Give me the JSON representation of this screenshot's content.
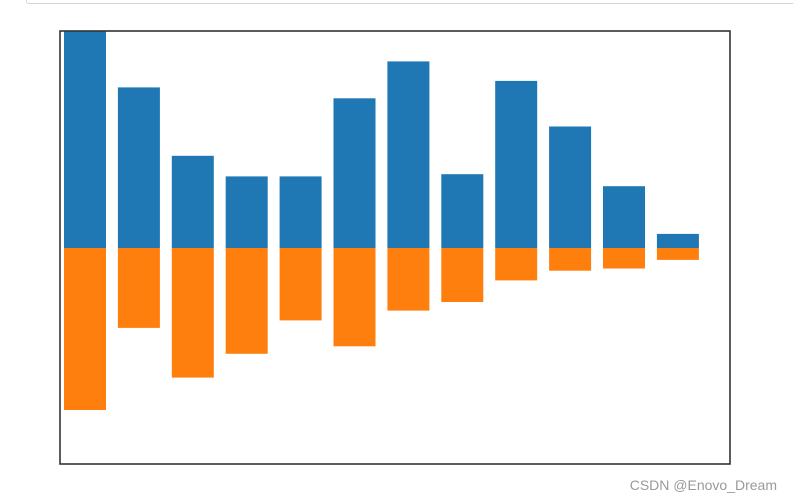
{
  "watermark": "CSDN @Enovo_Dream",
  "chart_data": {
    "type": "bar",
    "stacked": "diverging",
    "categories": [
      "",
      "",
      "",
      "",
      "",
      "",
      "",
      "",
      "",
      "",
      "",
      ""
    ],
    "series": [
      {
        "values": [
          1.0,
          0.74,
          0.425,
          0.33,
          0.33,
          0.69,
          0.86,
          0.34,
          0.77,
          0.56,
          0.285,
          0.065
        ],
        "color": "#1f77b4"
      },
      {
        "values": [
          -0.75,
          -0.37,
          -0.6,
          -0.49,
          -0.335,
          -0.455,
          -0.29,
          -0.25,
          -0.15,
          -0.105,
          -0.095,
          -0.055
        ],
        "color": "#ff7f0e"
      }
    ],
    "ylim": [
      -1.0,
      1.0
    ],
    "xticks": false,
    "yticks": false,
    "grid": false,
    "legend": false
  }
}
